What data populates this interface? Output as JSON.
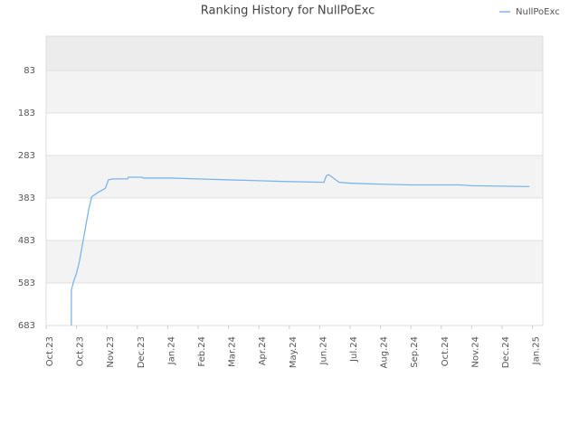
{
  "chart_data": {
    "type": "line",
    "title": "Ranking History for NullPoExc",
    "x": [
      0.83,
      0.83,
      0.9,
      1.0,
      1.1,
      1.2,
      1.3,
      1.4,
      1.5,
      1.7,
      1.95,
      2.05,
      2.2,
      2.68,
      2.7,
      3.15,
      3.2,
      4.1,
      5.0,
      5.9,
      6.9,
      7.8,
      9.14,
      9.22,
      9.3,
      9.64,
      10.0,
      10.8,
      12.0,
      13.6,
      14.0,
      15.9
    ],
    "series": [
      {
        "name": "NullPoExc",
        "color": "#7cb5ec",
        "values": [
          683,
          600,
          580,
          560,
          530,
          490,
          450,
          410,
          380,
          370,
          360,
          340,
          338,
          338,
          334,
          334,
          336,
          336,
          338,
          340,
          342,
          344,
          346,
          330,
          328,
          346,
          348,
          350,
          352,
          352,
          354,
          356
        ]
      }
    ],
    "xlim": [
      0,
      16.34
    ],
    "xticks": [
      {
        "value": 0,
        "label": "Oct.23"
      },
      {
        "value": 1,
        "label": "Oct.23"
      },
      {
        "value": 2,
        "label": "Nov.23"
      },
      {
        "value": 3,
        "label": "Dec.23"
      },
      {
        "value": 4,
        "label": "Jan.24"
      },
      {
        "value": 5,
        "label": "Feb.24"
      },
      {
        "value": 6,
        "label": "Mar.24"
      },
      {
        "value": 7,
        "label": "Apr.24"
      },
      {
        "value": 8,
        "label": "May.24"
      },
      {
        "value": 9,
        "label": "Jun.24"
      },
      {
        "value": 10,
        "label": "Jul.24"
      },
      {
        "value": 11,
        "label": "Aug.24"
      },
      {
        "value": 12,
        "label": "Sep.24"
      },
      {
        "value": 13,
        "label": "Oct.24"
      },
      {
        "value": 14,
        "label": "Nov.24"
      },
      {
        "value": 15,
        "label": "Dec.24"
      },
      {
        "value": 16,
        "label": "Jan.25"
      }
    ],
    "ylim": [
      683,
      2
    ],
    "yticks": [
      83,
      183,
      283,
      383,
      483,
      583,
      683
    ],
    "grid": true
  }
}
